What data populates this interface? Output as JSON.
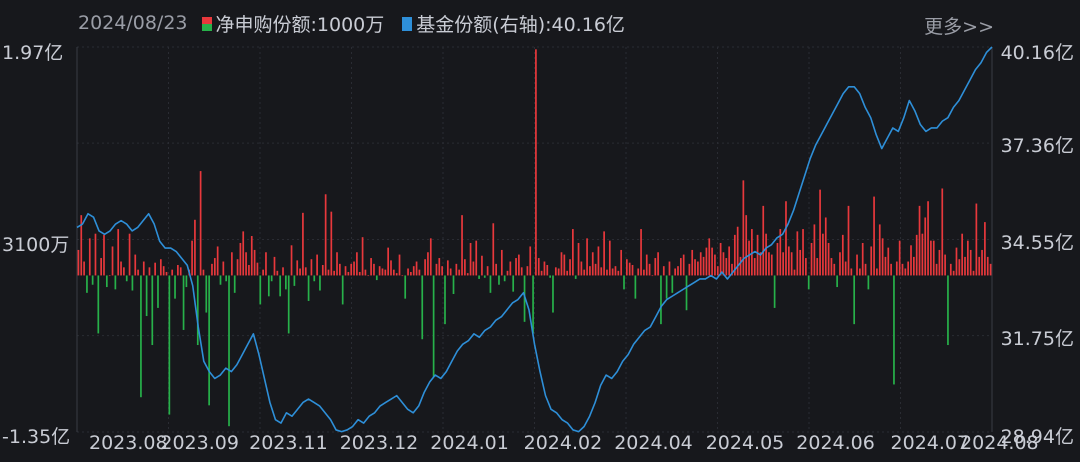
{
  "header": {
    "date": "2024/08/23",
    "legend_net": "净申购份额:1000万",
    "legend_share": "基金份额(右轴):40.16亿",
    "more_label": "更多>>"
  },
  "colors": {
    "background": "#17181c",
    "grid": "#2a2c33",
    "positive_bar": "#e8383c",
    "negative_bar": "#27b14a",
    "share_line": "#2e8fd8"
  },
  "chart_data": {
    "type": "bar+line",
    "left_axis": {
      "unit": "亿",
      "ylim": [
        -1.35,
        1.97
      ],
      "tick_labels": [
        "1.97亿",
        "3100万",
        "-1.35亿"
      ],
      "tick_values": [
        1.97,
        0.31,
        -1.35
      ]
    },
    "right_axis": {
      "unit": "亿",
      "ylim": [
        28.94,
        40.16
      ],
      "tick_labels": [
        "40.16亿",
        "37.36亿",
        "34.55亿",
        "31.75亿",
        "28.94亿"
      ],
      "tick_values": [
        40.16,
        37.36,
        34.55,
        31.75,
        28.94
      ]
    },
    "x_tick_labels": [
      "2023.08",
      "2023.09",
      "2023.11",
      "2023.12",
      "2024.01",
      "2024.02",
      "2024.04",
      "2024.05",
      "2024.06",
      "2024.07",
      "2024.08"
    ],
    "x_tick_positions": [
      0.0,
      0.078,
      0.175,
      0.274,
      0.373,
      0.475,
      0.574,
      0.674,
      0.773,
      0.876,
      0.952
    ],
    "series": [
      {
        "name": "净申购份额",
        "kind": "bar",
        "unit": "亿",
        "values": [
          0.22,
          0.52,
          0.12,
          -0.15,
          0.32,
          -0.08,
          0.36,
          -0.5,
          0.15,
          0.35,
          -0.1,
          0.0,
          0.25,
          -0.12,
          0.4,
          0.12,
          0.07,
          -0.05,
          0.36,
          -0.13,
          0.18,
          0.05,
          -1.05,
          0.12,
          -0.35,
          0.07,
          -0.6,
          0.11,
          -0.28,
          0.14,
          0.08,
          0.03,
          -1.2,
          0.05,
          -0.2,
          0.09,
          0.07,
          -0.47,
          -0.1,
          0.05,
          0.3,
          0.48,
          -0.6,
          0.9,
          0.05,
          -0.32,
          -1.12,
          0.1,
          0.15,
          0.25,
          -0.08,
          0.12,
          -0.05,
          -1.3,
          0.2,
          -0.15,
          0.14,
          0.28,
          0.38,
          0.2,
          0.09,
          0.34,
          0.22,
          0.11,
          -0.25,
          0.05,
          0.2,
          -0.18,
          -0.05,
          0.16,
          0.04,
          -0.18,
          0.07,
          -0.12,
          -0.5,
          0.26,
          -0.09,
          0.13,
          0.06,
          0.54,
          0.07,
          -0.22,
          0.14,
          -0.05,
          0.18,
          -0.13,
          0.09,
          0.7,
          0.05,
          0.55,
          0.04,
          0.2,
          0.1,
          -0.25,
          0.08,
          0.03,
          0.1,
          0.12,
          0.2,
          0.03,
          0.33,
          0.05,
          0.0,
          0.15,
          0.1,
          -0.04,
          0.08,
          0.06,
          0.05,
          0.24,
          0.13,
          0.05,
          0.02,
          0.18,
          0.0,
          -0.2,
          0.06,
          0.03,
          0.08,
          0.12,
          0.05,
          -0.55,
          0.14,
          0.2,
          0.32,
          -0.88,
          0.1,
          0.15,
          0.08,
          -0.42,
          0.13,
          0.06,
          -0.16,
          0.1,
          0.05,
          0.52,
          0.14,
          0.02,
          0.28,
          0.12,
          0.3,
          -0.03,
          0.17,
          -0.02,
          0.08,
          -0.15,
          0.45,
          0.1,
          -0.08,
          0.22,
          -0.05,
          0.04,
          0.12,
          -0.14,
          0.15,
          0.18,
          0.07,
          -0.4,
          0.08,
          0.25,
          -0.5,
          1.95,
          0.15,
          0.04,
          0.12,
          0.09,
          -0.02,
          -0.32,
          0.07,
          0.06,
          0.2,
          0.18,
          0.04,
          0.14,
          0.4,
          -0.03,
          0.28,
          0.12,
          0.05,
          0.32,
          0.08,
          0.2,
          0.1,
          0.25,
          0.07,
          0.38,
          0.05,
          0.3,
          0.06,
          0.08,
          0.04,
          0.22,
          -0.12,
          0.14,
          0.11,
          0.09,
          -0.2,
          0.06,
          0.4,
          0.05,
          0.18,
          0.1,
          0.0,
          0.15,
          0.2,
          -0.42,
          0.08,
          -0.2,
          0.12,
          -0.15,
          0.06,
          0.08,
          0.15,
          0.18,
          -0.3,
          0.1,
          0.22,
          0.14,
          0.12,
          0.2,
          0.16,
          0.24,
          0.32,
          0.24,
          0.18,
          0.08,
          0.28,
          0.2,
          0.15,
          0.25,
          0.1,
          0.35,
          0.42,
          0.16,
          0.82,
          0.52,
          0.3,
          0.4,
          0.15,
          0.35,
          0.2,
          0.6,
          0.36,
          0.2,
          0.18,
          -0.28,
          0.28,
          0.4,
          0.2,
          0.64,
          0.25,
          0.2,
          0.05,
          0.38,
          0.22,
          0.4,
          0.15,
          -0.12,
          0.28,
          0.44,
          0.15,
          0.74,
          0.36,
          0.5,
          0.28,
          0.15,
          0.1,
          -0.1,
          0.2,
          0.35,
          0.12,
          0.6,
          0.06,
          -0.42,
          0.18,
          0.06,
          0.28,
          0.1,
          -0.12,
          0.25,
          0.68,
          0.06,
          0.44,
          0.32,
          0.16,
          0.24,
          0.1,
          -0.94,
          0.12,
          0.3,
          0.1,
          0.06,
          0.12,
          0.26,
          0.16,
          0.35,
          0.6,
          0.36,
          0.5,
          0.64,
          0.3,
          0.3,
          0.1,
          0.22,
          0.75,
          0.18,
          -0.6,
          0.1,
          0.04,
          0.24,
          0.14,
          0.36,
          0.16,
          0.3,
          0.22,
          0.04,
          0.62,
          0.16,
          0.22,
          0.46,
          0.16,
          0.1
        ]
      },
      {
        "name": "基金份额",
        "kind": "line",
        "axis": "right",
        "unit": "亿",
        "values": [
          34.9,
          35.0,
          35.3,
          35.2,
          34.8,
          34.7,
          34.8,
          35.0,
          35.1,
          35.0,
          34.8,
          34.9,
          35.1,
          35.3,
          35.0,
          34.5,
          34.3,
          34.3,
          34.2,
          34.0,
          33.8,
          33.2,
          32.0,
          31.0,
          30.7,
          30.5,
          30.6,
          30.8,
          30.7,
          30.9,
          31.2,
          31.5,
          31.8,
          31.2,
          30.5,
          29.8,
          29.3,
          29.2,
          29.5,
          29.4,
          29.6,
          29.8,
          29.9,
          29.8,
          29.7,
          29.5,
          29.3,
          29.0,
          28.95,
          29.0,
          29.1,
          29.3,
          29.2,
          29.4,
          29.5,
          29.7,
          29.8,
          29.9,
          30.0,
          29.8,
          29.6,
          29.5,
          29.7,
          30.1,
          30.4,
          30.6,
          30.5,
          30.7,
          31.0,
          31.3,
          31.5,
          31.6,
          31.8,
          31.7,
          31.9,
          32.0,
          32.2,
          32.3,
          32.5,
          32.7,
          32.8,
          33.0,
          32.5,
          31.5,
          30.7,
          30.0,
          29.6,
          29.5,
          29.3,
          29.2,
          29.0,
          28.95,
          29.1,
          29.4,
          29.8,
          30.3,
          30.6,
          30.5,
          30.7,
          31.0,
          31.2,
          31.5,
          31.7,
          31.9,
          32.0,
          32.3,
          32.6,
          32.8,
          32.9,
          33.0,
          33.1,
          33.2,
          33.3,
          33.4,
          33.4,
          33.5,
          33.4,
          33.6,
          33.4,
          33.6,
          33.8,
          34.0,
          34.1,
          34.2,
          34.1,
          34.3,
          34.4,
          34.6,
          34.7,
          35.0,
          35.4,
          35.9,
          36.4,
          36.9,
          37.3,
          37.6,
          37.9,
          38.2,
          38.5,
          38.8,
          39.0,
          39.0,
          38.8,
          38.4,
          38.1,
          37.6,
          37.2,
          37.5,
          37.8,
          37.7,
          38.1,
          38.6,
          38.3,
          37.9,
          37.7,
          37.8,
          37.8,
          38.0,
          38.1,
          38.4,
          38.6,
          38.9,
          39.2,
          39.5,
          39.7,
          40.0,
          40.16
        ]
      }
    ],
    "grid": true
  }
}
